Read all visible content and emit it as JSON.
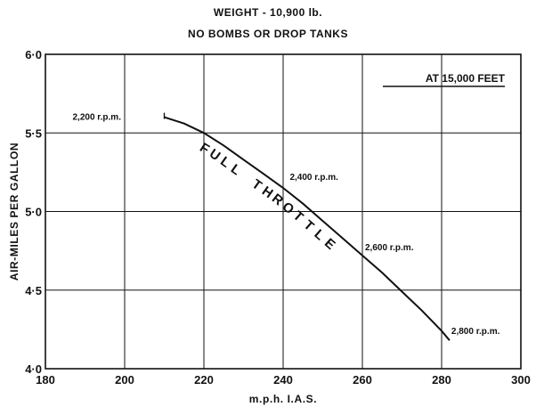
{
  "chart_data": {
    "type": "line",
    "title": "WEIGHT - 10,900 lb.",
    "subtitle": "NO BOMBS OR DROP TANKS",
    "xlabel": "m.p.h. I.A.S.",
    "ylabel": "AIR-MILES PER GALLON",
    "xlim": [
      180,
      300
    ],
    "ylim": [
      4.0,
      6.0
    ],
    "x_ticks": [
      "180",
      "200",
      "220",
      "240",
      "260",
      "280",
      "300"
    ],
    "y_ticks": [
      "4·0",
      "4·5",
      "5·0",
      "5·5",
      "6·0"
    ],
    "grid": true,
    "series": [
      {
        "x": [
          210,
          215,
          220,
          225,
          230,
          235,
          240,
          245,
          250,
          255,
          260,
          265,
          270,
          275,
          280,
          282
        ],
        "y": [
          5.6,
          5.56,
          5.5,
          5.42,
          5.33,
          5.24,
          5.15,
          5.05,
          4.94,
          4.83,
          4.72,
          4.61,
          4.49,
          4.37,
          4.24,
          4.18
        ]
      }
    ],
    "annotations": {
      "altitude": "AT 15,000 FEET",
      "curve_label": "FULL THROTTLE",
      "rpm": [
        {
          "text": "2,200 r.p.m.",
          "x": 210,
          "y": 5.6
        },
        {
          "text": "2,400 r.p.m.",
          "x": 241,
          "y": 5.14
        },
        {
          "text": "2,600 r.p.m.",
          "x": 260,
          "y": 4.72
        },
        {
          "text": "2,800 r.p.m.",
          "x": 282,
          "y": 4.18
        }
      ]
    }
  }
}
